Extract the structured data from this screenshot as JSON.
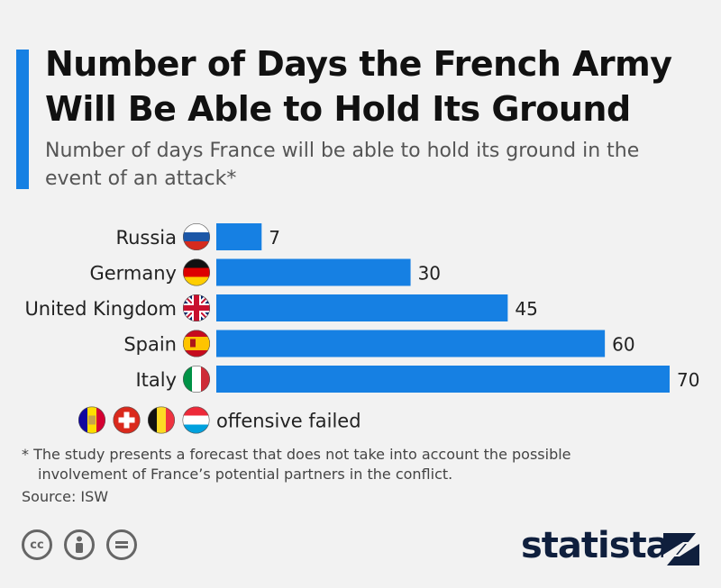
{
  "title": "Number of Days the French Army Will Be Able to Hold Its Ground",
  "subtitle": "Number of days France will be able to hold its ground in the event of an attack*",
  "colors": {
    "accent": "#1680e3",
    "bar": "#1680e3"
  },
  "chart_data": {
    "type": "bar",
    "orientation": "horizontal",
    "categories": [
      "Russia",
      "Germany",
      "United Kingdom",
      "Spain",
      "Italy"
    ],
    "values": [
      7,
      30,
      45,
      60,
      70
    ],
    "flags": [
      "russia-flag-icon",
      "germany-flag-icon",
      "uk-flag-icon",
      "spain-flag-icon",
      "italy-flag-icon"
    ],
    "extra_row": {
      "flags": [
        "andorra-flag-icon",
        "switzerland-flag-icon",
        "belgium-flag-icon",
        "luxembourg-flag-icon"
      ],
      "label": "offensive failed"
    },
    "xlim": [
      0,
      70
    ],
    "grid": false,
    "title": "",
    "xlabel": "",
    "ylabel": ""
  },
  "footnote": {
    "line1": "* The study presents a forecast that does not take into account the possible",
    "line2": "involvement of France’s potential partners in the conflict."
  },
  "source": "Source: ISW",
  "license_icons": [
    "cc-icon",
    "attribution-icon",
    "no-derivatives-icon"
  ],
  "brand": "statista"
}
